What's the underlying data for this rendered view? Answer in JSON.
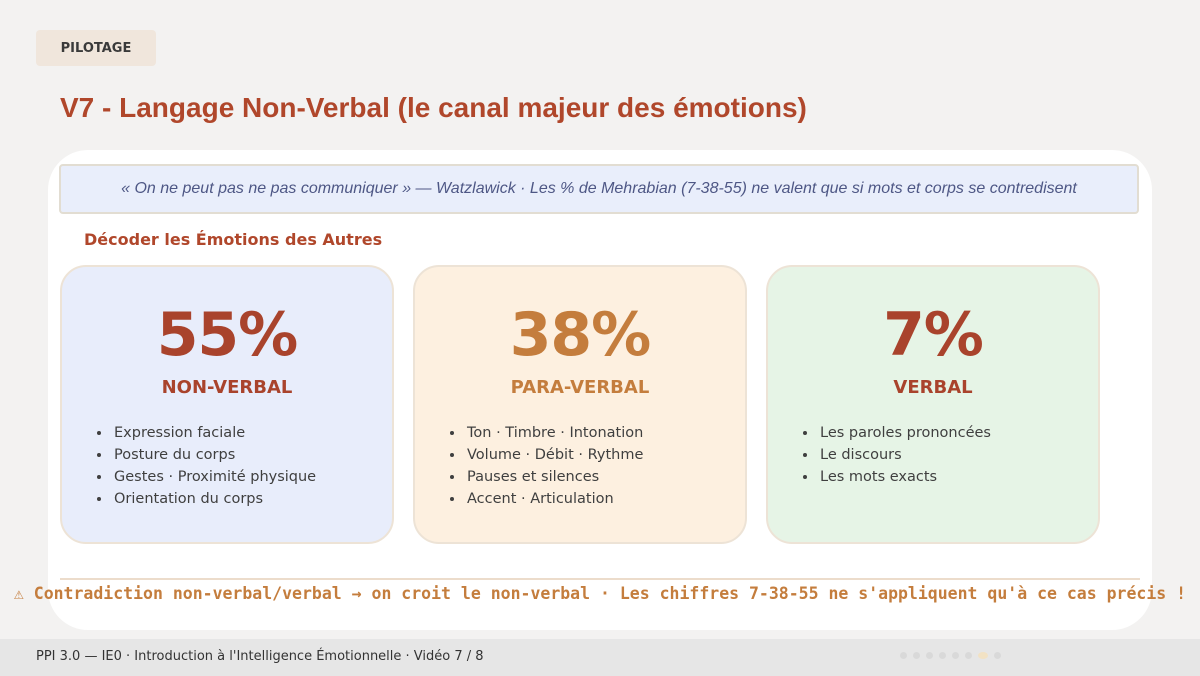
{
  "header": {
    "badge": "PILOTAGE",
    "title": "V7 - Langage Non-Verbal (le canal majeur des émotions)"
  },
  "quote": "« On ne peut pas ne pas communiquer » — Watzlawick · Les % de Mehrabian (7-38-55) ne valent que si mots et corps se contredisent",
  "section_title": "Décoder les Émotions des Autres",
  "cards": [
    {
      "percent": "55%",
      "label": "NON-VERBAL",
      "color": "#a9432c",
      "background": "#e8edfb",
      "items": [
        "Expression faciale",
        "Posture du corps",
        "Gestes · Proximité physique",
        "Orientation du corps"
      ]
    },
    {
      "percent": "38%",
      "label": "PARA-VERBAL",
      "color": "#c47d3d",
      "background": "#fdf0e0",
      "items": [
        "Ton · Timbre · Intonation",
        "Volume · Débit · Rythme",
        "Pauses et silences",
        "Accent · Articulation"
      ]
    },
    {
      "percent": "7%",
      "label": "VERBAL",
      "color": "#a9432c",
      "background": "#e6f4e6",
      "items": [
        "Les paroles prononcées",
        "Le discours",
        "Les mots exacts"
      ]
    }
  ],
  "warning": "⚠ Contradiction non-verbal/verbal → on croit le non-verbal · Les chiffres 7-38-55 ne s'appliquent qu'à ce cas précis !",
  "footer": {
    "text": "PPI 3.0 — IE0 · Introduction à l'Intelligence Émotionnelle · Vidéo 7 / 8",
    "progress_total": 8,
    "progress_current": 7
  },
  "colors": {
    "accent": "#b0472b",
    "accent_secondary": "#c47d3d",
    "quote_text": "#4e5785"
  }
}
